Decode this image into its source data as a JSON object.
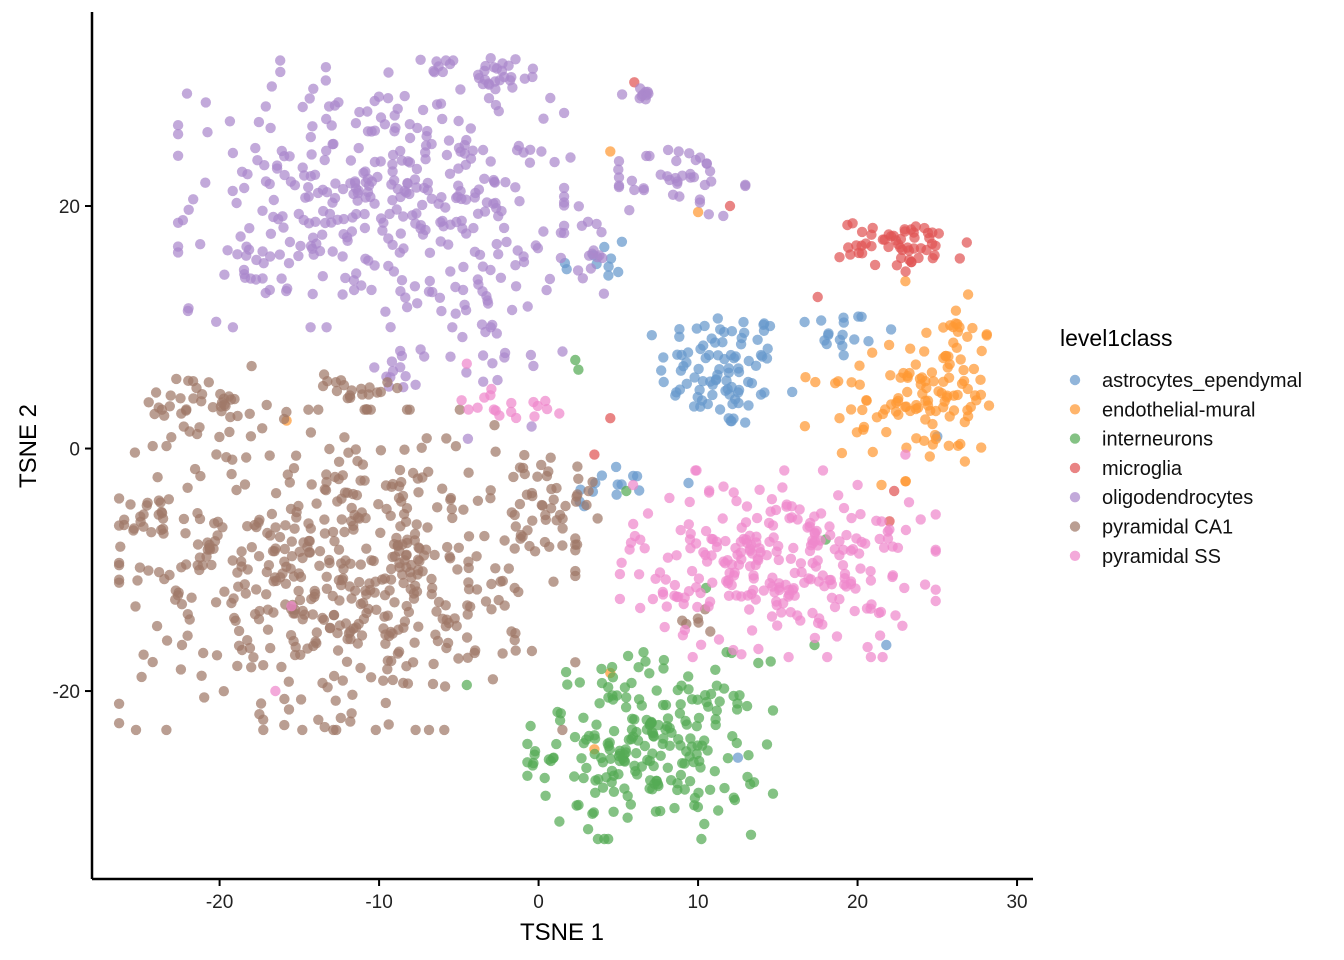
{
  "chart_data": {
    "type": "scatter",
    "title": "",
    "xlabel": "TSNE 1",
    "ylabel": "TSNE 2",
    "xlim": [
      -28,
      31
    ],
    "ylim": [
      -35.5,
      36
    ],
    "x_ticks": [
      -20,
      -10,
      0,
      10,
      20,
      30
    ],
    "x_tick_labels": [
      "-20",
      "-10",
      "0",
      "10",
      "20",
      "30"
    ],
    "y_ticks": [
      -20,
      0,
      20
    ],
    "y_tick_labels": [
      "-20",
      "0",
      "20"
    ],
    "grid": false,
    "legend": {
      "title": "level1class",
      "placement": "right"
    },
    "series": [
      {
        "name": "astrocytes_ependymal",
        "color": "#6699CC",
        "clusters": [
          {
            "cx": 11.5,
            "cy": 6.5,
            "sx": 2.0,
            "sy": 2.5,
            "n": 90
          },
          {
            "cx": 18.5,
            "cy": 9.5,
            "sx": 2.0,
            "sy": 1.5,
            "n": 18
          },
          {
            "cx": 5.0,
            "cy": -3.0,
            "sx": 2.0,
            "sy": 1.0,
            "n": 14
          },
          {
            "cx": 3.5,
            "cy": 15.0,
            "sx": 1.2,
            "sy": 1.5,
            "n": 10
          }
        ],
        "points": [
          [
            21.8,
            -16.2
          ],
          [
            25.0,
            1.0
          ],
          [
            12.5,
            -25.5
          ]
        ]
      },
      {
        "name": "endothelial-mural",
        "color": "#FF9933",
        "clusters": [
          {
            "cx": 25.5,
            "cy": 5.0,
            "sx": 1.6,
            "sy": 3.5,
            "n": 95
          },
          {
            "cx": 20.0,
            "cy": 3.5,
            "sx": 1.5,
            "sy": 2.0,
            "n": 30
          }
        ],
        "points": [
          [
            4.5,
            24.5
          ],
          [
            3.5,
            -24.8
          ],
          [
            4.5,
            -18.5
          ],
          [
            10.0,
            19.5
          ],
          [
            23.0,
            13.8
          ],
          [
            -15.8,
            2.3
          ],
          [
            21.5,
            -3.0
          ]
        ]
      },
      {
        "name": "interneurons",
        "color": "#55AA55",
        "clusters": [
          {
            "cx": 7.0,
            "cy": -24.5,
            "sx": 3.5,
            "sy": 3.5,
            "n": 230
          }
        ],
        "points": [
          [
            2.5,
            6.5
          ],
          [
            2.3,
            7.3
          ],
          [
            17.3,
            -16.2
          ],
          [
            -4.5,
            -19.5
          ],
          [
            18.0,
            -7.5
          ],
          [
            10.5,
            -11.5
          ],
          [
            5.5,
            -3.5
          ]
        ]
      },
      {
        "name": "microglia",
        "color": "#E05555",
        "clusters": [
          {
            "cx": 23.0,
            "cy": 16.8,
            "sx": 2.0,
            "sy": 1.0,
            "n": 55
          }
        ],
        "points": [
          [
            6.0,
            30.2
          ],
          [
            12.0,
            20.0
          ],
          [
            17.5,
            12.5
          ],
          [
            4.5,
            2.5
          ],
          [
            22.0,
            -6.0
          ],
          [
            3.5,
            -0.5
          ],
          [
            22.3,
            -3.5
          ]
        ]
      },
      {
        "name": "oligodendrocytes",
        "color": "#AA88CC",
        "clusters": [
          {
            "cx": -10.5,
            "cy": 21.0,
            "sx": 5.5,
            "sy": 5.0,
            "n": 320
          },
          {
            "cx": -3.0,
            "cy": 14.0,
            "sx": 2.0,
            "sy": 6.0,
            "n": 60
          },
          {
            "cx": -3.0,
            "cy": 31.0,
            "sx": 2.0,
            "sy": 0.8,
            "n": 30
          },
          {
            "cx": 9.0,
            "cy": 22.0,
            "sx": 1.8,
            "sy": 1.5,
            "n": 40
          },
          {
            "cx": 5.8,
            "cy": 29.2,
            "sx": 0.8,
            "sy": 0.5,
            "n": 10
          },
          {
            "cx": -17.5,
            "cy": 15.0,
            "sx": 1.0,
            "sy": 1.2,
            "n": 18
          },
          {
            "cx": -9.0,
            "cy": 6.0,
            "sx": 1.0,
            "sy": 1.5,
            "n": 12
          },
          {
            "cx": 3.0,
            "cy": 16.0,
            "sx": 1.0,
            "sy": 2.0,
            "n": 15
          }
        ],
        "points": [
          [
            1.5,
            8.0
          ],
          [
            2.0,
            24.0
          ],
          [
            5.0,
            23.0
          ]
        ]
      },
      {
        "name": "pyramidal CA1",
        "color": "#A07868",
        "clusters": [
          {
            "cx": -12.0,
            "cy": -10.0,
            "sx": 6.5,
            "sy": 6.0,
            "n": 520
          },
          {
            "cx": -21.0,
            "cy": 3.5,
            "sx": 2.0,
            "sy": 1.5,
            "n": 45
          },
          {
            "cx": -24.5,
            "cy": -6.0,
            "sx": 0.8,
            "sy": 1.0,
            "n": 20
          },
          {
            "cx": -11.5,
            "cy": 5.0,
            "sx": 1.2,
            "sy": 0.8,
            "n": 20
          },
          {
            "cx": 0.5,
            "cy": -4.5,
            "sx": 1.5,
            "sy": 1.8,
            "n": 40
          },
          {
            "cx": 9.5,
            "cy": -14.0,
            "sx": 0.8,
            "sy": 0.8,
            "n": 6
          }
        ],
        "points": [
          [
            -1.5,
            -15.8
          ],
          [
            -1.5,
            -11.5
          ],
          [
            -2.5,
            -12.5
          ]
        ]
      },
      {
        "name": "pyramidal SS",
        "color": "#EE88CC",
        "clusters": [
          {
            "cx": 15.0,
            "cy": -9.5,
            "sx": 4.5,
            "sy": 3.5,
            "n": 270
          },
          {
            "cx": -2.0,
            "cy": 3.5,
            "sx": 1.5,
            "sy": 0.8,
            "n": 18
          }
        ],
        "points": [
          [
            -16.5,
            -20.0
          ],
          [
            -15.5,
            -13.0
          ],
          [
            -4.5,
            7.0
          ],
          [
            20.0,
            -3.0
          ],
          [
            23.0,
            -0.5
          ]
        ]
      }
    ]
  }
}
